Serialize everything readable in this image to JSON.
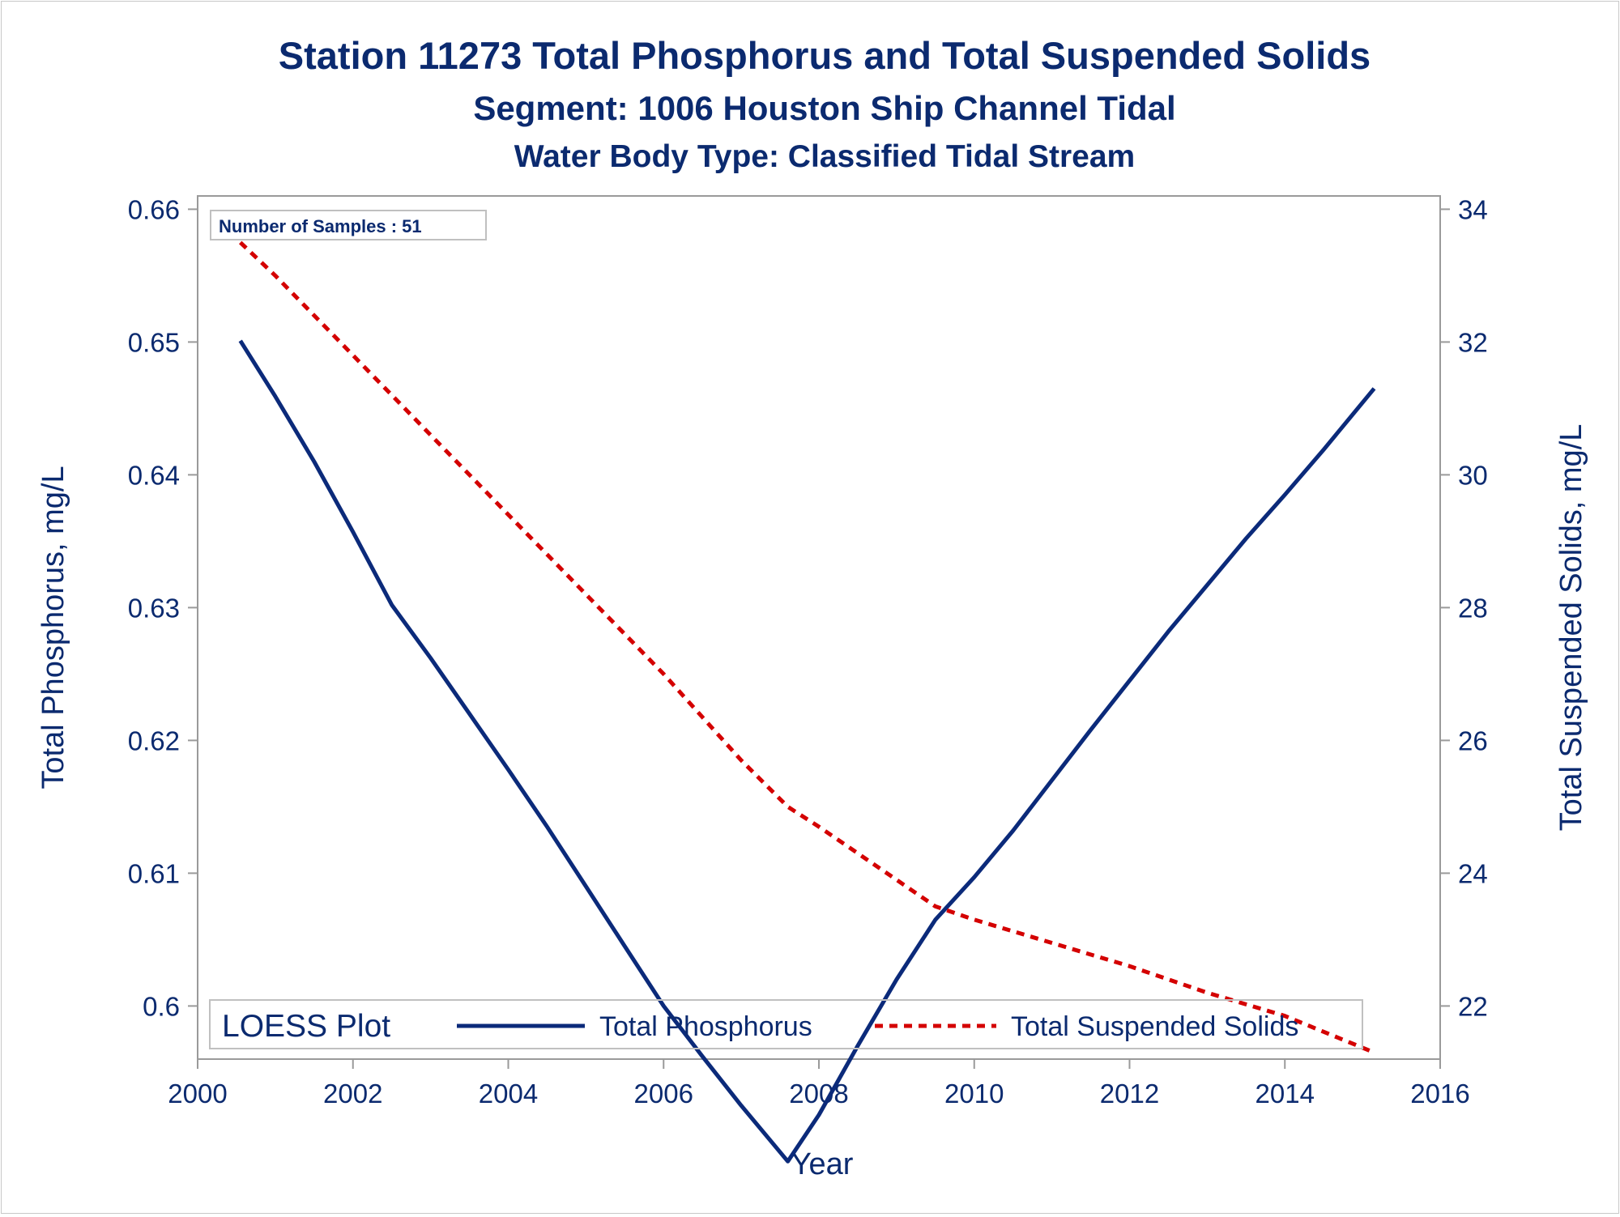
{
  "titles": {
    "line1": "Station 11273  Total Phosphorus and Total Suspended Solids",
    "line2": "Segment: 1006  Houston Ship Channel Tidal",
    "line3": "Water Body Type: Classified Tidal Stream"
  },
  "inset_label": "Number of Samples : 51",
  "colors": {
    "text": "#0b2a6f",
    "phosphorus": "#0b2a7a",
    "tss": "#d40000",
    "axis": "#9a9a9a"
  },
  "chart_data": {
    "type": "line",
    "xlabel": "Year",
    "ylabel_left": "Total Phosphorus, mg/L",
    "ylabel_right": "Total Suspended Solids, mg/L",
    "xlim": [
      2000,
      2016
    ],
    "ylim_left": [
      0.596,
      0.661
    ],
    "ylim_right": [
      21.2,
      34.2
    ],
    "x_ticks": [
      2000,
      2002,
      2004,
      2006,
      2008,
      2010,
      2012,
      2014,
      2016
    ],
    "y_ticks_left": [
      0.6,
      0.61,
      0.62,
      0.63,
      0.64,
      0.65,
      0.66
    ],
    "y_ticks_left_labels": [
      "0.6",
      "0.61",
      "0.62",
      "0.63",
      "0.64",
      "0.65",
      "0.66"
    ],
    "y_ticks_right": [
      22,
      24,
      26,
      28,
      30,
      32,
      34
    ],
    "legend": {
      "title": "LOESS Plot",
      "position": "bottom-inside"
    },
    "series": [
      {
        "name": "Total Phosphorus",
        "axis": "left",
        "style": "solid",
        "x": [
          2000.55,
          2001.0,
          2001.5,
          2002.0,
          2002.5,
          2003.0,
          2003.5,
          2004.0,
          2004.5,
          2005.0,
          2005.5,
          2006.0,
          2006.5,
          2007.0,
          2007.6,
          2008.0,
          2008.5,
          2009.0,
          2009.5,
          2010.0,
          2010.5,
          2011.0,
          2011.5,
          2012.0,
          2012.5,
          2013.0,
          2013.5,
          2014.0,
          2014.5,
          2015.15
        ],
        "y": [
          0.6501,
          0.6459,
          0.641,
          0.6357,
          0.6302,
          0.6262,
          0.622,
          0.6178,
          0.6135,
          0.609,
          0.6045,
          0.6,
          0.5962,
          0.5925,
          0.5883,
          0.5918,
          0.597,
          0.602,
          0.6065,
          0.6097,
          0.6132,
          0.617,
          0.6208,
          0.6245,
          0.6282,
          0.6317,
          0.6352,
          0.6385,
          0.6419,
          0.6465
        ]
      },
      {
        "name": "Total Suspended Solids",
        "axis": "right",
        "style": "dashed",
        "x": [
          2000.55,
          2001.0,
          2002.0,
          2003.0,
          2004.0,
          2005.0,
          2006.0,
          2007.0,
          2007.6,
          2008.0,
          2009.0,
          2009.5,
          2010.0,
          2011.0,
          2012.0,
          2013.0,
          2014.0,
          2015.15
        ],
        "y": [
          33.5,
          33.0,
          31.8,
          30.6,
          29.4,
          28.2,
          27.0,
          25.7,
          25.0,
          24.7,
          23.9,
          23.5,
          23.3,
          22.95,
          22.6,
          22.2,
          21.85,
          21.3
        ]
      }
    ]
  }
}
